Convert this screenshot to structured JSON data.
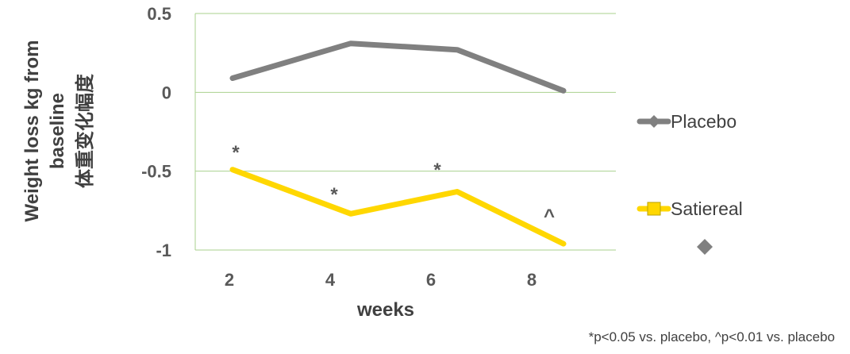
{
  "chart_data": {
    "type": "line",
    "title": "",
    "xlabel": "weeks",
    "ylabel_lines": [
      "Weight loss kg from",
      "baseline",
      "体重变化幅度"
    ],
    "categories": [
      "2",
      "4",
      "6",
      "8"
    ],
    "ylim": [
      -1,
      0.5
    ],
    "yticks": [
      0.5,
      0,
      -0.5,
      -1
    ],
    "ytick_labels": [
      "0.5",
      "0",
      "-0.5",
      "-1"
    ],
    "grid": true,
    "legend_position": "right",
    "series": [
      {
        "name": "Placebo",
        "color": "#808080",
        "marker": "diamond",
        "values": [
          0.09,
          0.31,
          0.27,
          0.01
        ],
        "annotations": [
          "",
          "",
          "",
          ""
        ]
      },
      {
        "name": "Satiereal",
        "color": "#FFD700",
        "marker": "square",
        "values": [
          -0.49,
          -0.77,
          -0.63,
          -0.96
        ],
        "annotations": [
          "*",
          "*",
          "*",
          "^"
        ]
      }
    ],
    "footnote": "*p<0.05 vs. placebo, ^p<0.01 vs. placebo"
  }
}
